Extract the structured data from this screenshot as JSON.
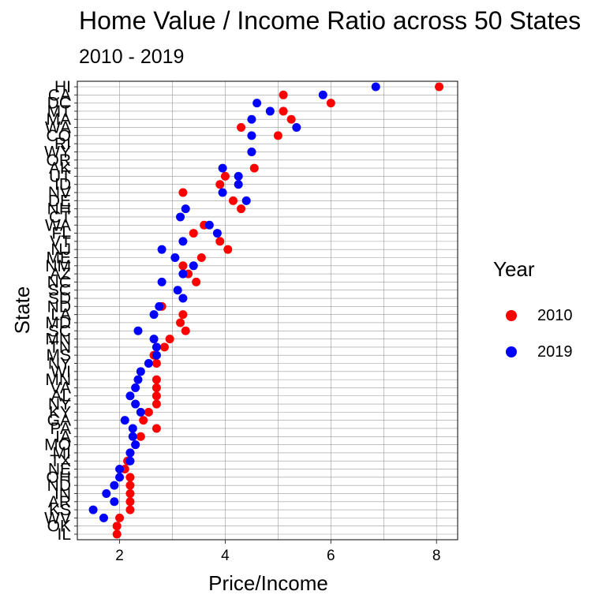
{
  "chart_data": {
    "type": "scatter",
    "title": "Home Value / Income Ratio across 50 States",
    "subtitle": "2010 - 2019",
    "xlabel": "Price/Income",
    "ylabel": "State",
    "xlim": [
      1.2,
      8.4
    ],
    "xticks": [
      2,
      4,
      6,
      8
    ],
    "grid": true,
    "legend": {
      "title": "Year",
      "position": "right"
    },
    "categories": [
      "HI",
      "CA",
      "DC",
      "MT",
      "MA",
      "WA",
      "CO",
      "RI",
      "WY",
      "OR",
      "AK",
      "UT",
      "ID",
      "NV",
      "DE",
      "NH",
      "CT",
      "WA",
      "FL",
      "VT",
      "NJ",
      "ME",
      "NM",
      "AZ",
      "NC",
      "SC",
      "SD",
      "ND",
      "LA",
      "MD",
      "SC",
      "MN",
      "TN",
      "MS",
      "NY",
      "WI",
      "MN",
      "VA",
      "AL",
      "NY",
      "KY",
      "GA",
      "PA",
      "IA",
      "MO",
      "MI",
      "TX",
      "NE",
      "OH",
      "ND",
      "IN",
      "AR",
      "KS",
      "WV",
      "OK",
      "IL"
    ],
    "series": [
      {
        "name": "2010",
        "color": "#ff0000",
        "values": [
          8.05,
          5.1,
          6.0,
          5.1,
          5.25,
          4.3,
          5.0,
          null,
          4.5,
          null,
          4.55,
          4.0,
          3.9,
          3.2,
          4.15,
          4.3,
          null,
          3.6,
          3.4,
          3.9,
          4.05,
          3.55,
          3.2,
          3.3,
          3.45,
          null,
          null,
          2.8,
          3.2,
          3.15,
          3.25,
          2.95,
          2.85,
          2.65,
          2.7,
          null,
          2.7,
          2.7,
          2.7,
          2.7,
          2.55,
          2.45,
          2.7,
          2.4,
          2.3,
          2.2,
          2.15,
          2.1,
          2.2,
          2.2,
          2.2,
          2.2,
          2.2,
          2.0,
          1.95,
          1.95
        ]
      },
      {
        "name": "2019",
        "color": "#0000ff",
        "values": [
          6.85,
          5.85,
          4.6,
          4.85,
          4.5,
          5.35,
          4.5,
          null,
          4.5,
          null,
          3.95,
          4.25,
          4.25,
          3.95,
          4.4,
          3.25,
          3.15,
          3.7,
          3.85,
          3.2,
          2.8,
          3.05,
          3.4,
          3.2,
          2.8,
          3.1,
          3.2,
          2.75,
          2.65,
          null,
          2.35,
          2.65,
          2.7,
          2.7,
          2.55,
          2.4,
          2.35,
          2.3,
          2.2,
          2.3,
          2.4,
          2.1,
          2.25,
          2.25,
          2.3,
          2.2,
          2.2,
          2.0,
          2.0,
          1.9,
          1.75,
          1.9,
          1.5,
          1.7,
          null,
          null
        ]
      }
    ]
  }
}
